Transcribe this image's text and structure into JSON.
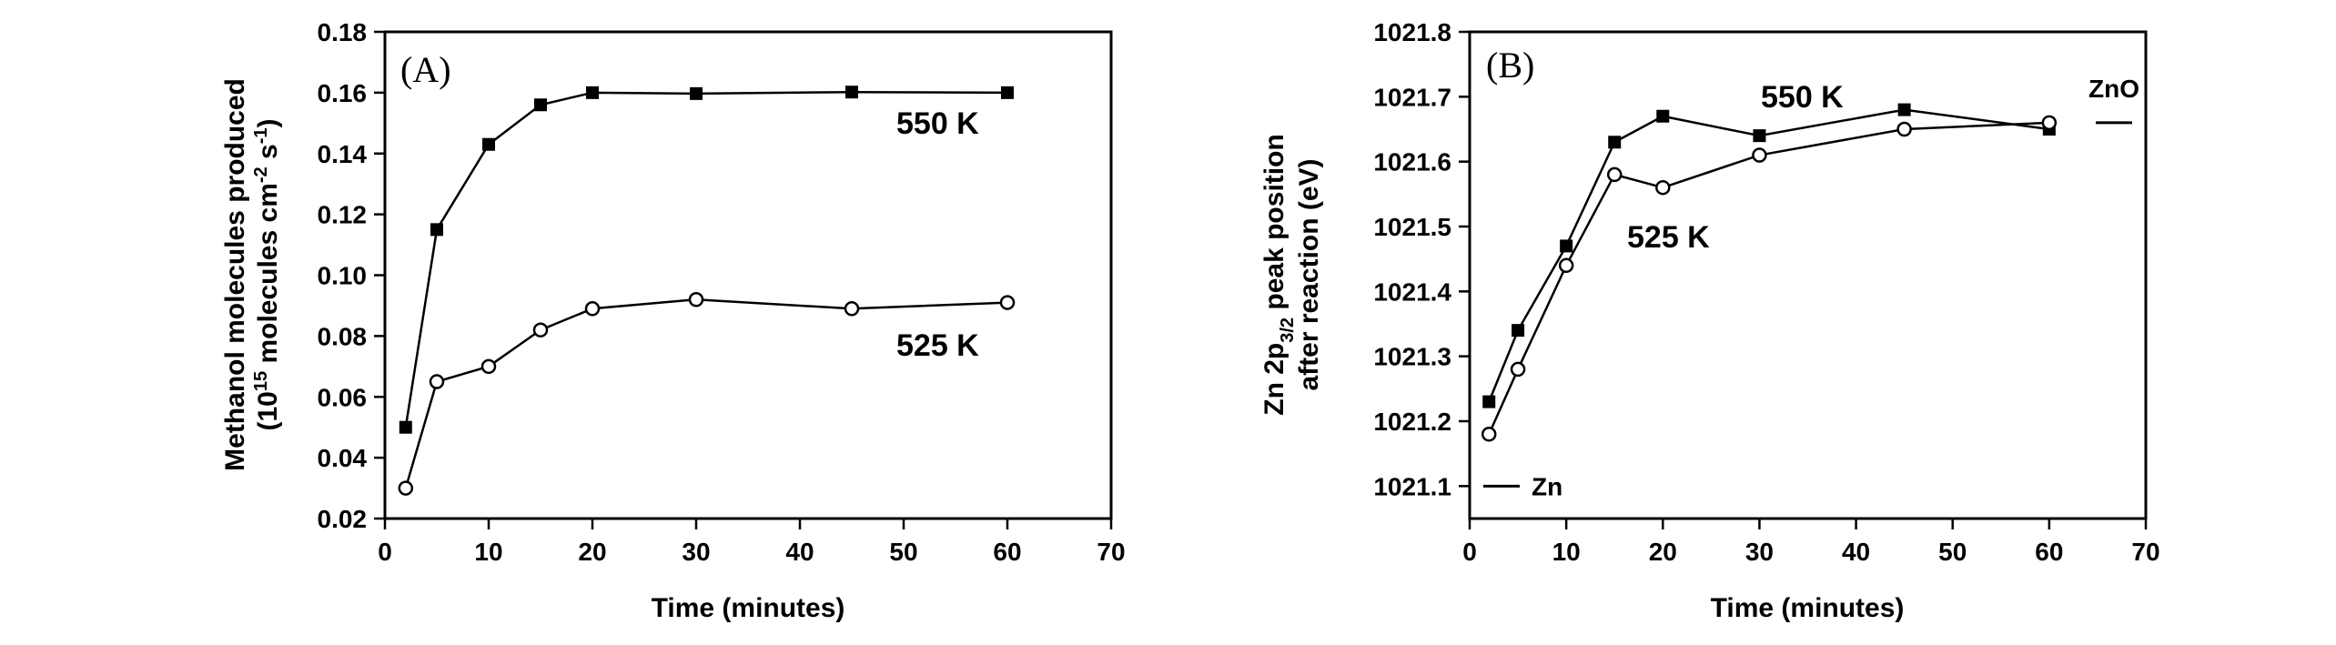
{
  "chart_data": [
    {
      "type": "line",
      "panel_label": "(A)",
      "xlabel": "Time (minutes)",
      "ylabel_line1": "Methanol molecules produced",
      "ylabel_line2_prefix": "(10",
      "ylabel_line2_exp1": "15",
      "ylabel_line2_mid": " molecules cm",
      "ylabel_line2_exp2": "-2",
      "ylabel_line2_mid2": " s",
      "ylabel_line2_exp3": "-1",
      "ylabel_line2_suffix": ")",
      "xlim": [
        0,
        70
      ],
      "ylim": [
        0.02,
        0.18
      ],
      "xticks": [
        "0",
        "10",
        "20",
        "30",
        "40",
        "50",
        "60",
        "70"
      ],
      "yticks": [
        "0.02",
        "0.04",
        "0.06",
        "0.08",
        "0.10",
        "0.12",
        "0.14",
        "0.16",
        "0.18"
      ],
      "series": [
        {
          "name": "550 K",
          "marker": "filled-square",
          "x": [
            2,
            5,
            10,
            15,
            20,
            30,
            45,
            60
          ],
          "y": [
            0.05,
            0.115,
            0.143,
            0.156,
            0.16,
            0.1597,
            0.1602,
            0.16
          ]
        },
        {
          "name": "525 K",
          "marker": "open-circle",
          "x": [
            2,
            5,
            10,
            15,
            20,
            30,
            45,
            60
          ],
          "y": [
            0.03,
            0.065,
            0.07,
            0.082,
            0.089,
            0.092,
            0.089,
            0.091
          ]
        }
      ],
      "references": []
    },
    {
      "type": "line",
      "panel_label": "(B)",
      "xlabel": "Time (minutes)",
      "ylabel_line1_prefix": "Zn 2p",
      "ylabel_line1_sub": "3/2",
      "ylabel_line1_suffix": " peak position",
      "ylabel_line2": "after reaction (eV)",
      "xlim": [
        0,
        70
      ],
      "ylim": [
        1021.05,
        1021.8
      ],
      "xticks": [
        "0",
        "10",
        "20",
        "30",
        "40",
        "50",
        "60",
        "70"
      ],
      "yticks": [
        "1021.1",
        "1021.2",
        "1021.3",
        "1021.4",
        "1021.5",
        "1021.6",
        "1021.7",
        "1021.8"
      ],
      "series": [
        {
          "name": "550 K",
          "marker": "filled-square",
          "x": [
            2,
            5,
            10,
            15,
            20,
            30,
            45,
            60
          ],
          "y": [
            1021.23,
            1021.34,
            1021.47,
            1021.63,
            1021.67,
            1021.64,
            1021.68,
            1021.65
          ]
        },
        {
          "name": "525 K",
          "marker": "open-circle",
          "x": [
            2,
            5,
            10,
            15,
            20,
            30,
            45,
            60
          ],
          "y": [
            1021.18,
            1021.28,
            1021.44,
            1021.58,
            1021.56,
            1021.61,
            1021.65,
            1021.66
          ]
        }
      ],
      "references": [
        {
          "label": "Zn",
          "y": 1021.1
        },
        {
          "label": "ZnO",
          "y": 1021.66
        }
      ]
    }
  ]
}
